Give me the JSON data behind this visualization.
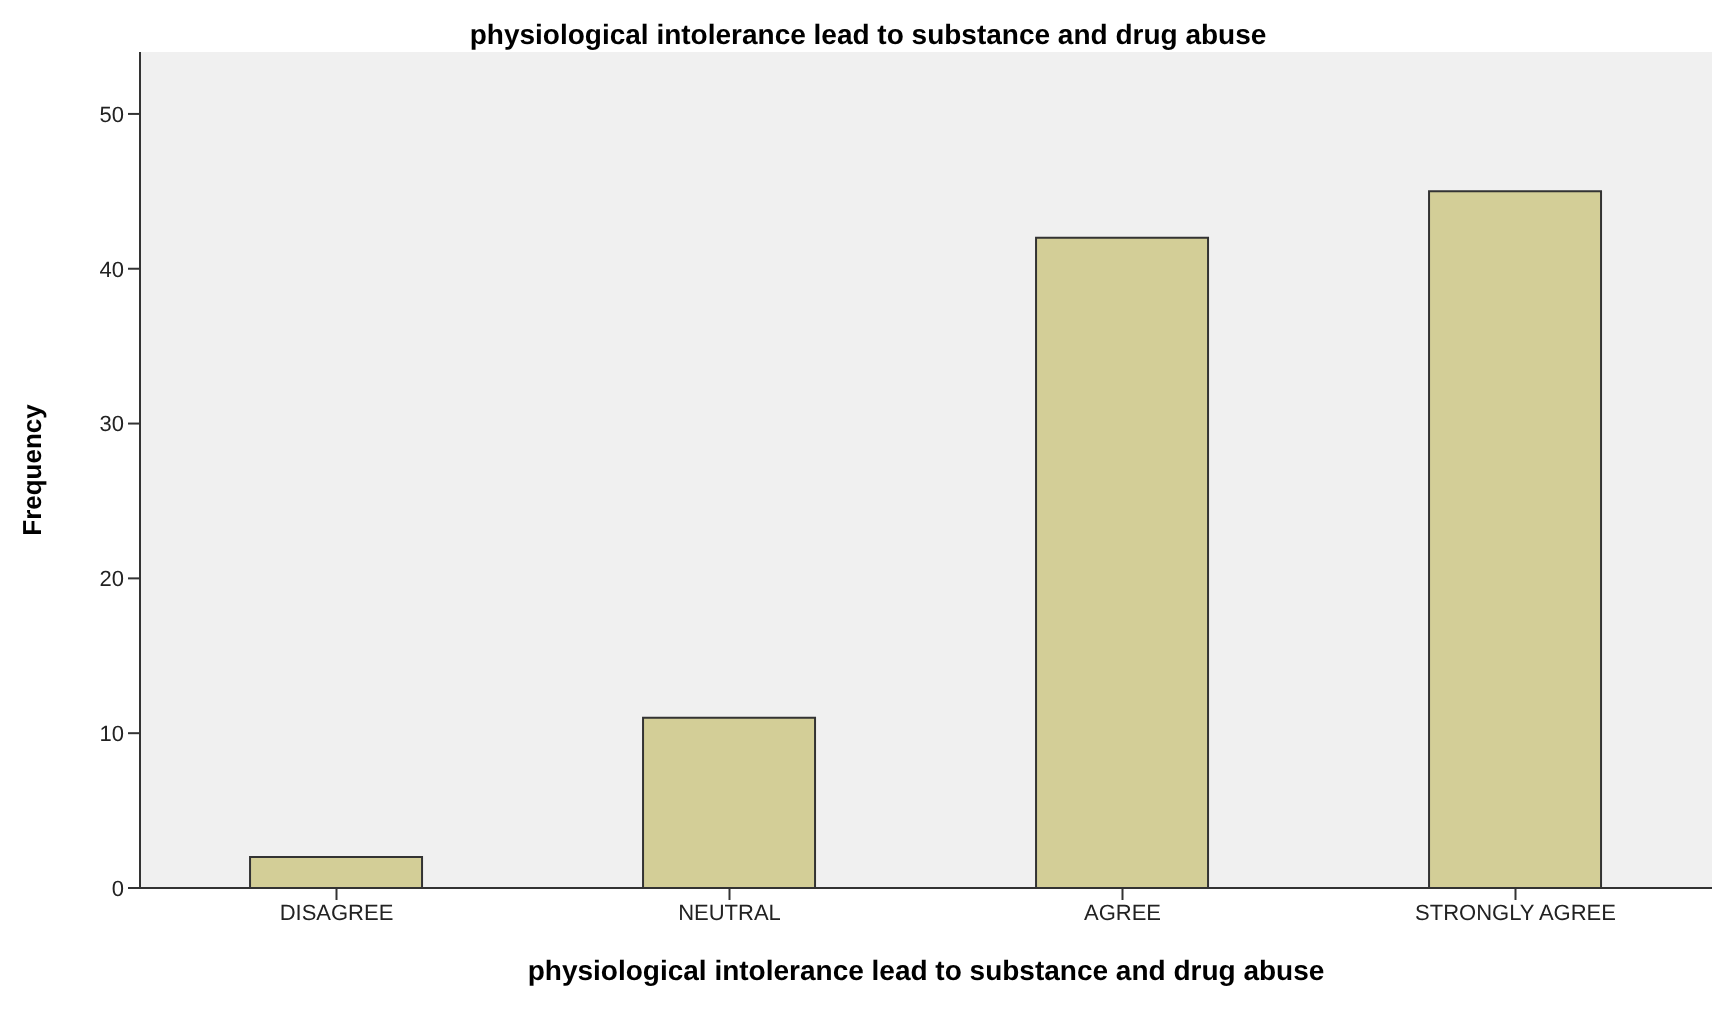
{
  "chart_data": {
    "type": "bar",
    "title": "physiological intolerance lead to substance and drug abuse",
    "xlabel": "physiological intolerance lead to substance and drug abuse",
    "ylabel": "Frequency",
    "categories": [
      "DISAGREE",
      "NEUTRAL",
      "AGREE",
      "STRONGLY AGREE"
    ],
    "values": [
      2,
      11,
      42,
      45
    ],
    "color": "#d3ce97",
    "ylim": [
      0,
      54
    ],
    "yticks": [
      0,
      10,
      20,
      30,
      40,
      50
    ],
    "grid": false
  }
}
